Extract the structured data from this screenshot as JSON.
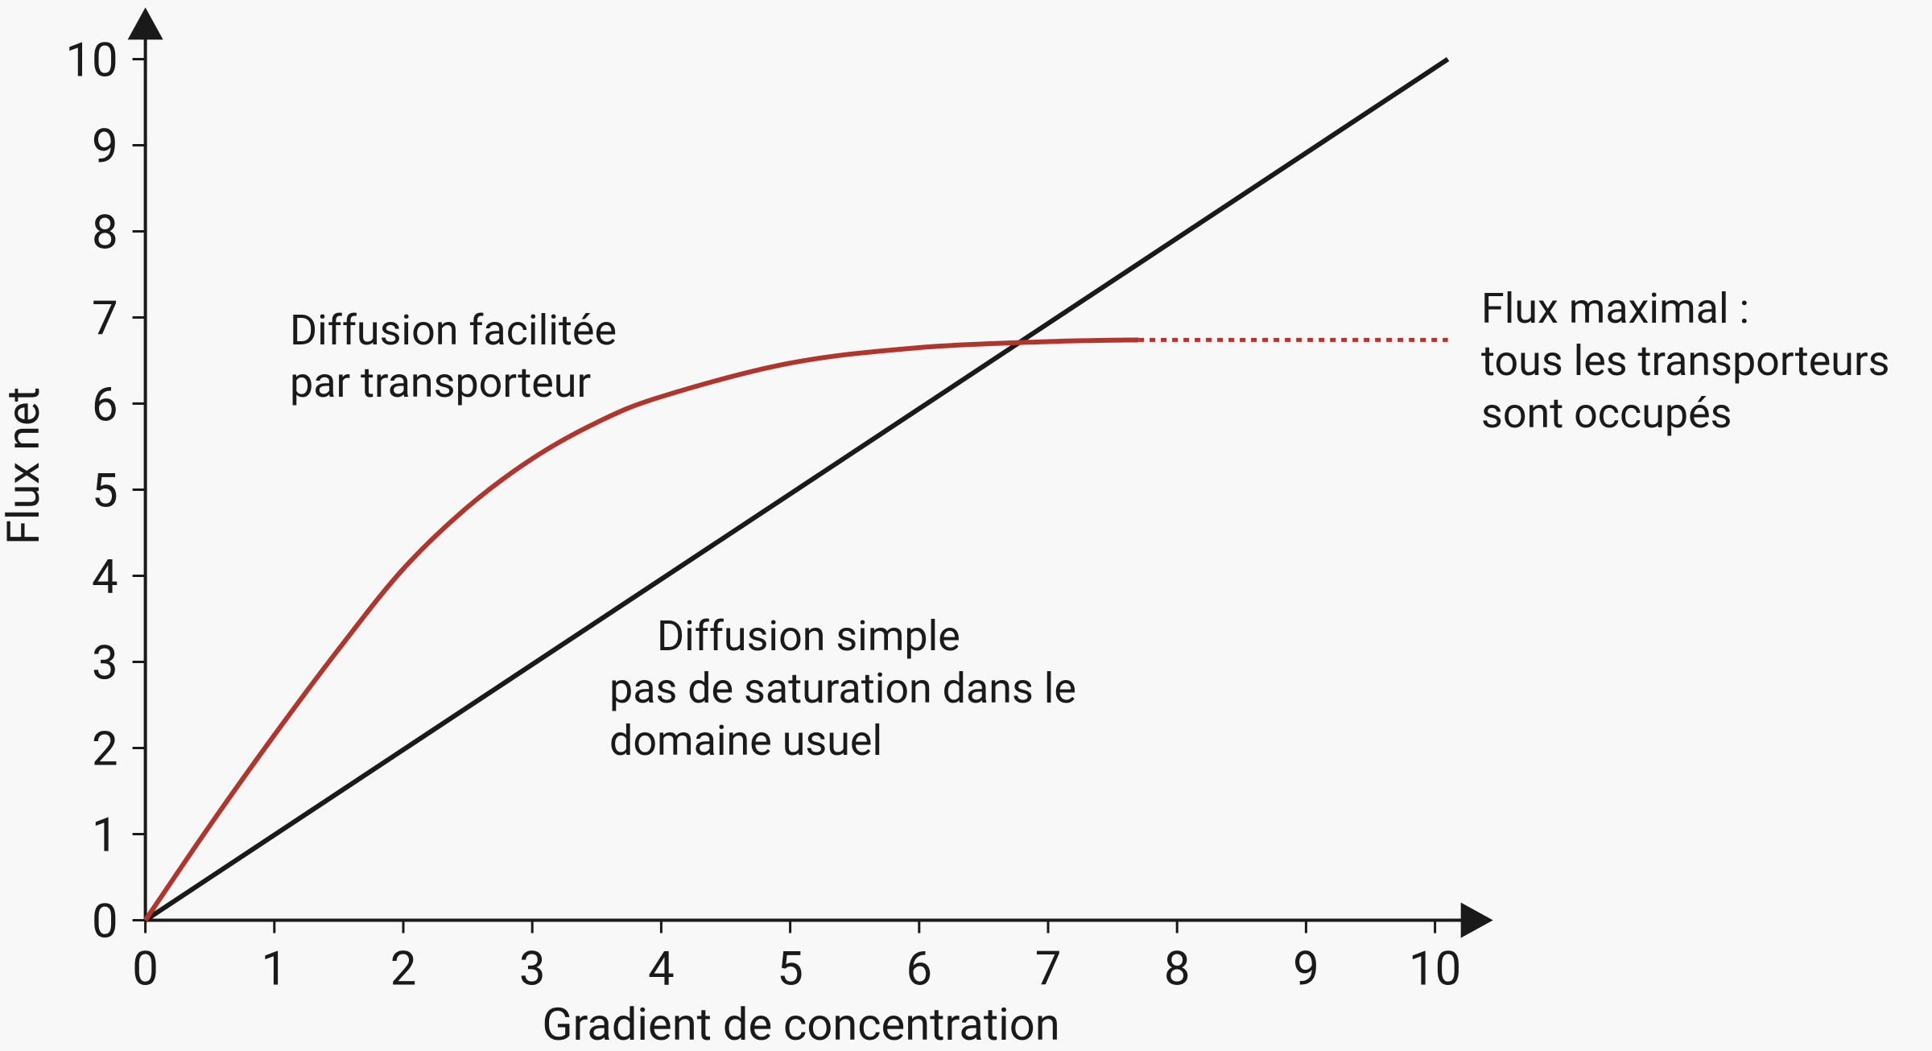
{
  "chart_data": {
    "type": "line",
    "xlabel": "Gradient de concentration",
    "ylabel": "Flux net",
    "xlim": [
      0,
      10.45
    ],
    "ylim": [
      0,
      10.6
    ],
    "xticks": [
      0,
      1,
      2,
      3,
      4,
      5,
      6,
      7,
      8,
      9,
      10
    ],
    "yticks": [
      0,
      1,
      2,
      3,
      4,
      5,
      6,
      7,
      8,
      9,
      10
    ],
    "series": [
      {
        "color": "#1a1a1a",
        "dashed": false,
        "x": [
          0,
          10.1
        ],
        "values": [
          0,
          10
        ]
      },
      {
        "color": "#b0352d",
        "dashed": false,
        "x": [
          0,
          0.5,
          1,
          1.5,
          2,
          2.5,
          3,
          3.5,
          4,
          5,
          6,
          7,
          7.7
        ],
        "values": [
          0,
          1.1,
          2.15,
          3.15,
          4.08,
          4.8,
          5.36,
          5.78,
          6.08,
          6.47,
          6.65,
          6.72,
          6.74
        ]
      },
      {
        "color": "#b0352d",
        "dashed": true,
        "x": [
          7.7,
          10.1
        ],
        "values": [
          6.74,
          6.74
        ]
      }
    ],
    "annotations": [
      {
        "lines": [
          "Diffusion facilitée",
          "par transporteur"
        ]
      },
      {
        "lines": [
          "Diffusion simple",
          "pas de saturation dans le",
          "domaine usuel"
        ]
      },
      {
        "lines": [
          "Flux maximal :",
          "tous les transporteurs",
          "sont occupés"
        ]
      }
    ]
  }
}
